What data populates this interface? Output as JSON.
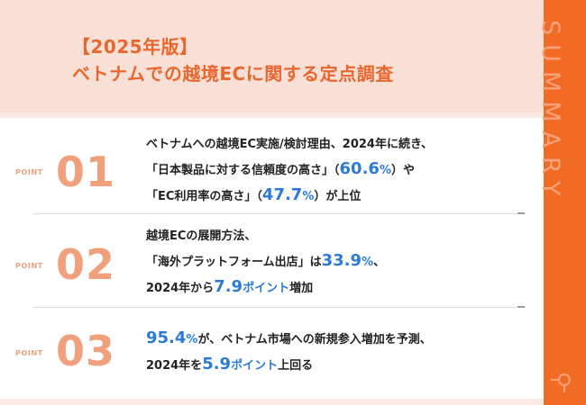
{
  "header": {
    "title_line1": "【2025年版】",
    "title_line2": "ベトナムでの越境ECに関する定点調査"
  },
  "side": {
    "label": "SUMMARY",
    "icon": "magnifier-icon"
  },
  "points": [
    {
      "label": "POINT",
      "number": "01",
      "lines": [
        {
          "parts": [
            {
              "text": "ベトナムへの越境EC実施/検討理由、2024年に続き、"
            }
          ]
        },
        {
          "parts": [
            {
              "text": "「日本製品に対する信頼度の高さ」（"
            },
            {
              "text": "60.6",
              "style": "hl"
            },
            {
              "text": "%",
              "style": "hl-small"
            },
            {
              "text": "）や"
            }
          ]
        },
        {
          "parts": [
            {
              "text": "「EC利用率の高さ」（"
            },
            {
              "text": "47.7",
              "style": "hl"
            },
            {
              "text": "%",
              "style": "hl-small"
            },
            {
              "text": "）が上位"
            }
          ]
        }
      ]
    },
    {
      "label": "POINT",
      "number": "02",
      "lines": [
        {
          "parts": [
            {
              "text": "越境ECの展開方法、"
            }
          ]
        },
        {
          "parts": [
            {
              "text": "「海外プラットフォーム出店」は"
            },
            {
              "text": "33.9",
              "style": "hl"
            },
            {
              "text": "%",
              "style": "hl-small"
            },
            {
              "text": "、"
            }
          ]
        },
        {
          "parts": [
            {
              "text": "2024年から"
            },
            {
              "text": "7.9",
              "style": "hl"
            },
            {
              "text": "ポイント",
              "style": "hl-small"
            },
            {
              "text": "増加"
            }
          ]
        }
      ]
    },
    {
      "label": "POINT",
      "number": "03",
      "lines": [
        {
          "parts": [
            {
              "text": "95.4",
              "style": "hl"
            },
            {
              "text": "%",
              "style": "hl-small"
            },
            {
              "text": "が、ベトナム市場への新規参入増加を予測、"
            }
          ]
        },
        {
          "parts": [
            {
              "text": "2024年を"
            },
            {
              "text": "5.9",
              "style": "hl"
            },
            {
              "text": "ポイント",
              "style": "hl-small"
            },
            {
              "text": "上回る"
            }
          ]
        }
      ]
    }
  ],
  "colors": {
    "accent": "#f26b25",
    "title": "#e8672f",
    "point": "#f0a07c",
    "highlight": "#2b7bd6",
    "background": "#fbe9e3"
  }
}
